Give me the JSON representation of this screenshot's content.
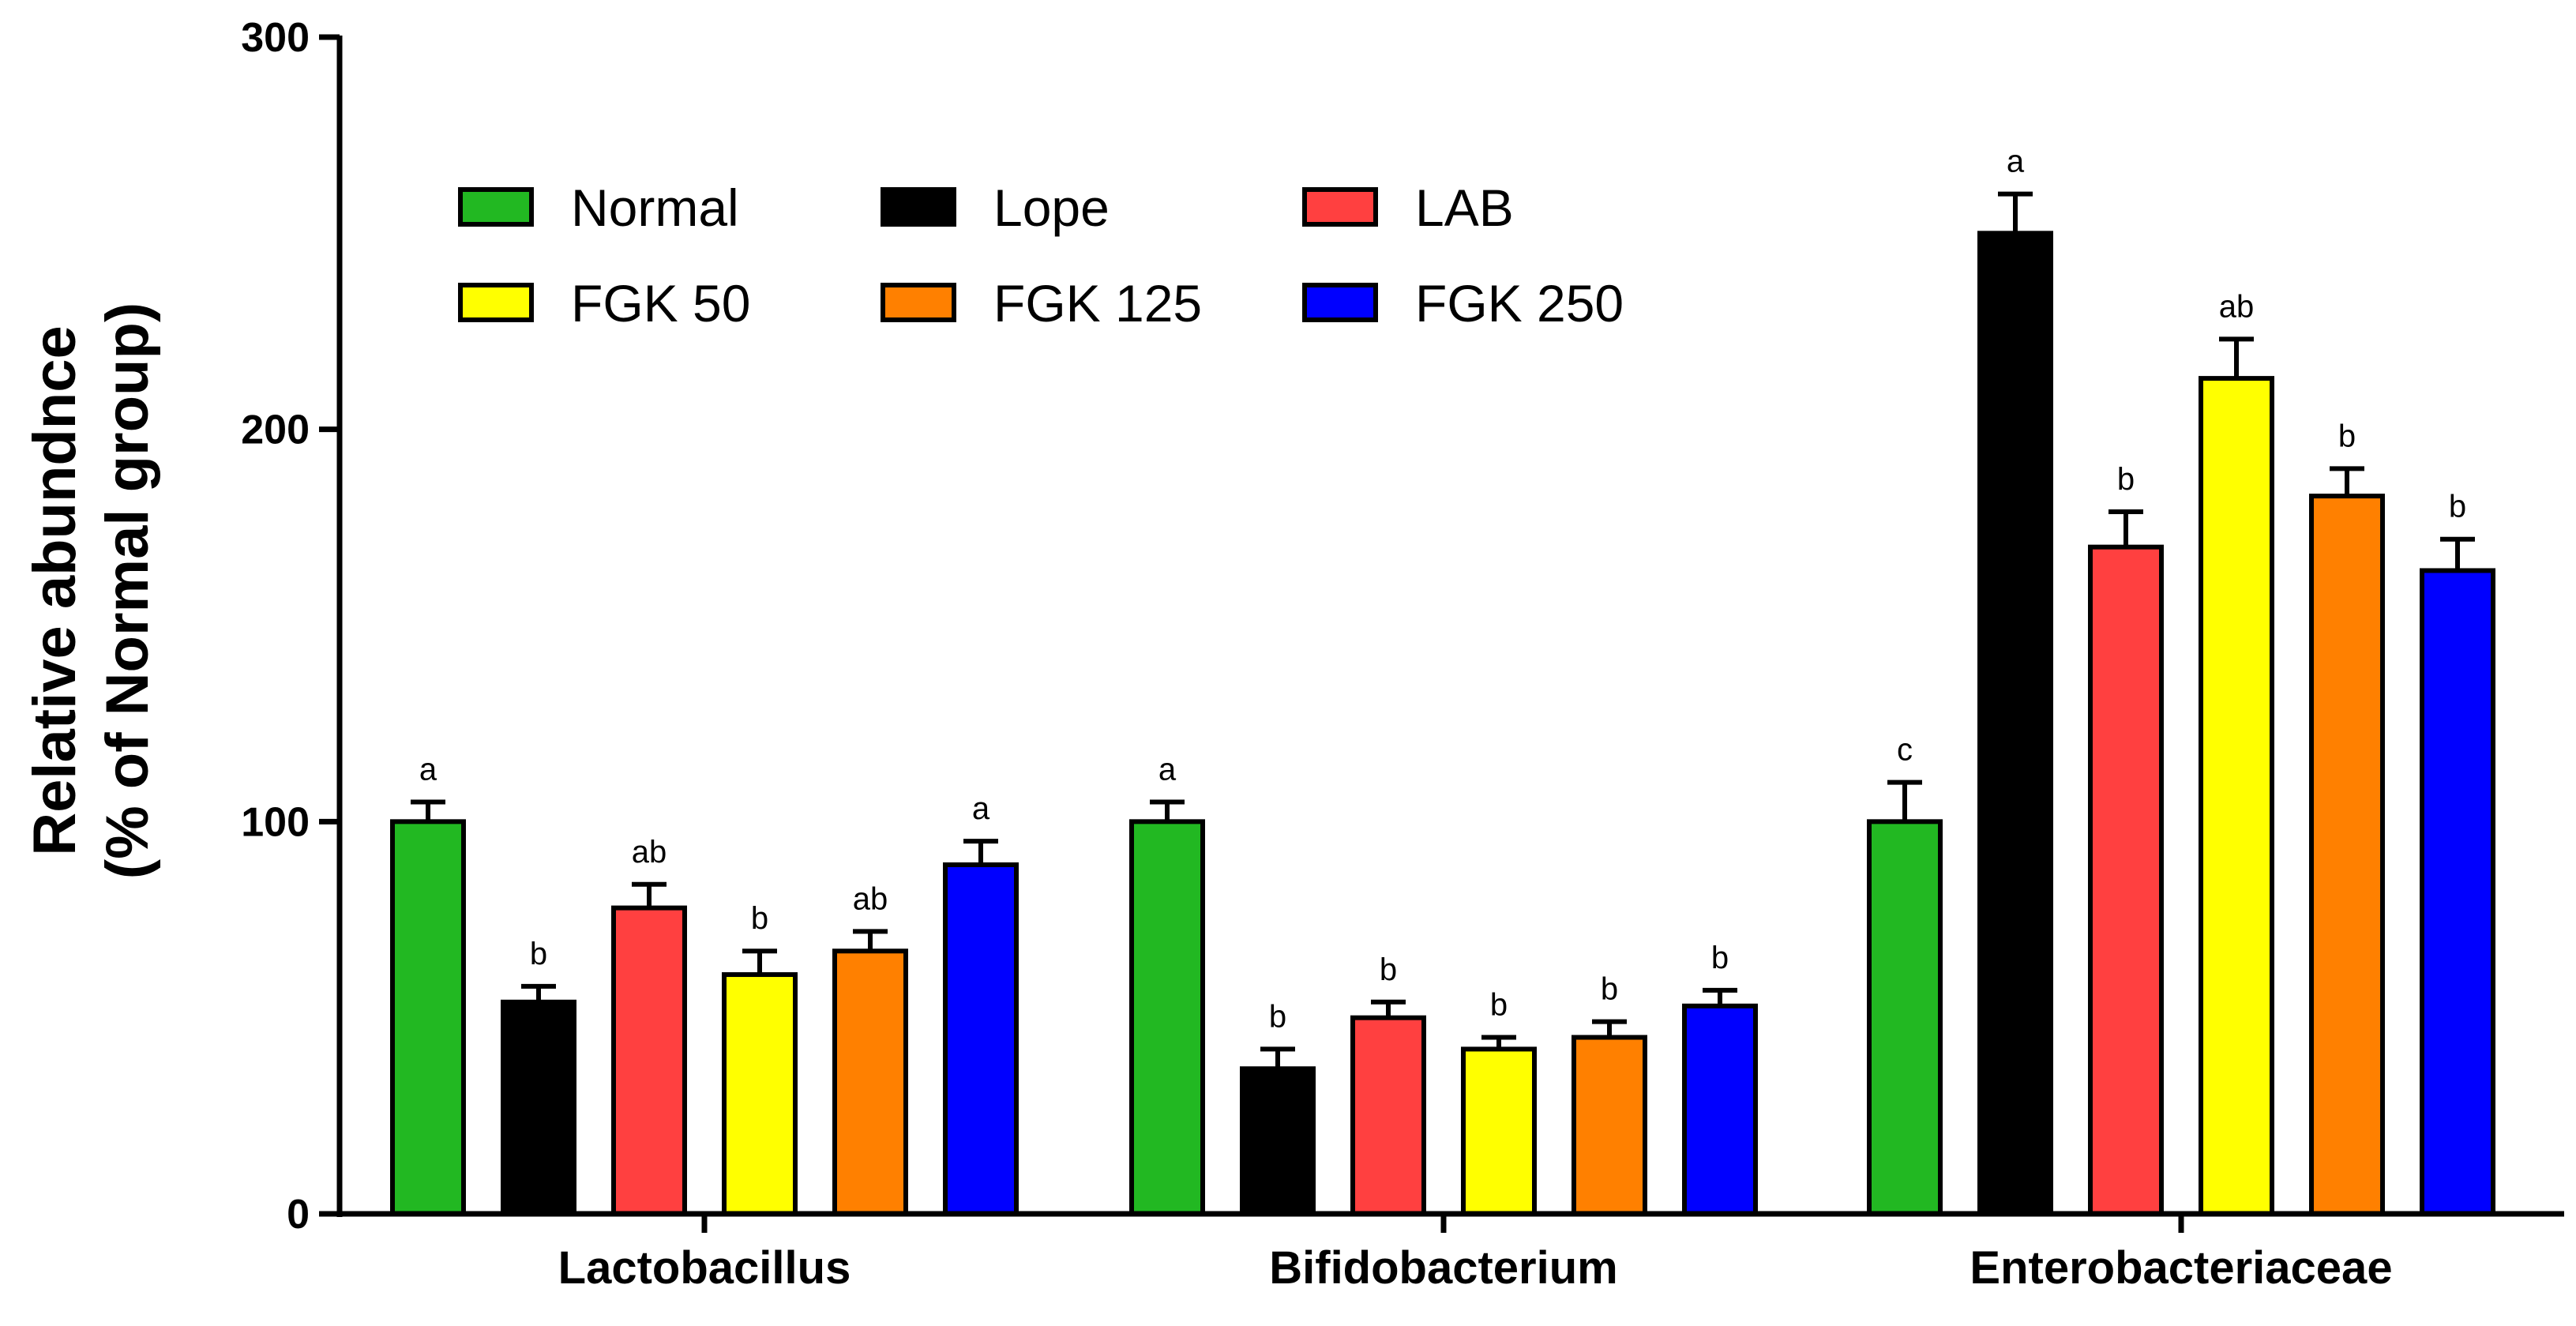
{
  "chart_data": {
    "type": "bar",
    "title": "",
    "xlabel": "",
    "ylabel": "Relative abundnce",
    "ylabel_line2": "(% of Normal group)",
    "ylim": [
      0,
      300
    ],
    "yticks": [
      "0",
      "100",
      "200",
      "300"
    ],
    "grid": false,
    "legend_position": "top-left",
    "categories": [
      "Lactobacillus",
      "Bifidobacterium",
      "Enterobacteriaceae"
    ],
    "series": [
      {
        "name": "Normal",
        "color": "#22b822",
        "values": [
          100,
          100,
          100
        ],
        "errors": [
          5,
          5,
          10
        ],
        "letters": [
          "a",
          "a",
          "c"
        ]
      },
      {
        "name": "Lope",
        "color": "#000000",
        "values": [
          54,
          37,
          250
        ],
        "errors": [
          4,
          5,
          10
        ],
        "letters": [
          "b",
          "b",
          "a"
        ]
      },
      {
        "name": "LAB",
        "color": "#ff4040",
        "values": [
          78,
          50,
          170
        ],
        "errors": [
          6,
          4,
          9
        ],
        "letters": [
          "ab",
          "b",
          "b"
        ]
      },
      {
        "name": "FGK 50",
        "color": "#ffff00",
        "values": [
          61,
          42,
          213
        ],
        "errors": [
          6,
          3,
          10
        ],
        "letters": [
          "b",
          "b",
          "ab"
        ]
      },
      {
        "name": "FGK 125",
        "color": "#ff8000",
        "values": [
          67,
          45,
          183
        ],
        "errors": [
          5,
          4,
          7
        ],
        "letters": [
          "ab",
          "b",
          "b"
        ]
      },
      {
        "name": "FGK 250",
        "color": "#0000ff",
        "values": [
          89,
          53,
          164
        ],
        "errors": [
          6,
          4,
          8
        ],
        "letters": [
          "a",
          "b",
          "b"
        ]
      }
    ]
  }
}
